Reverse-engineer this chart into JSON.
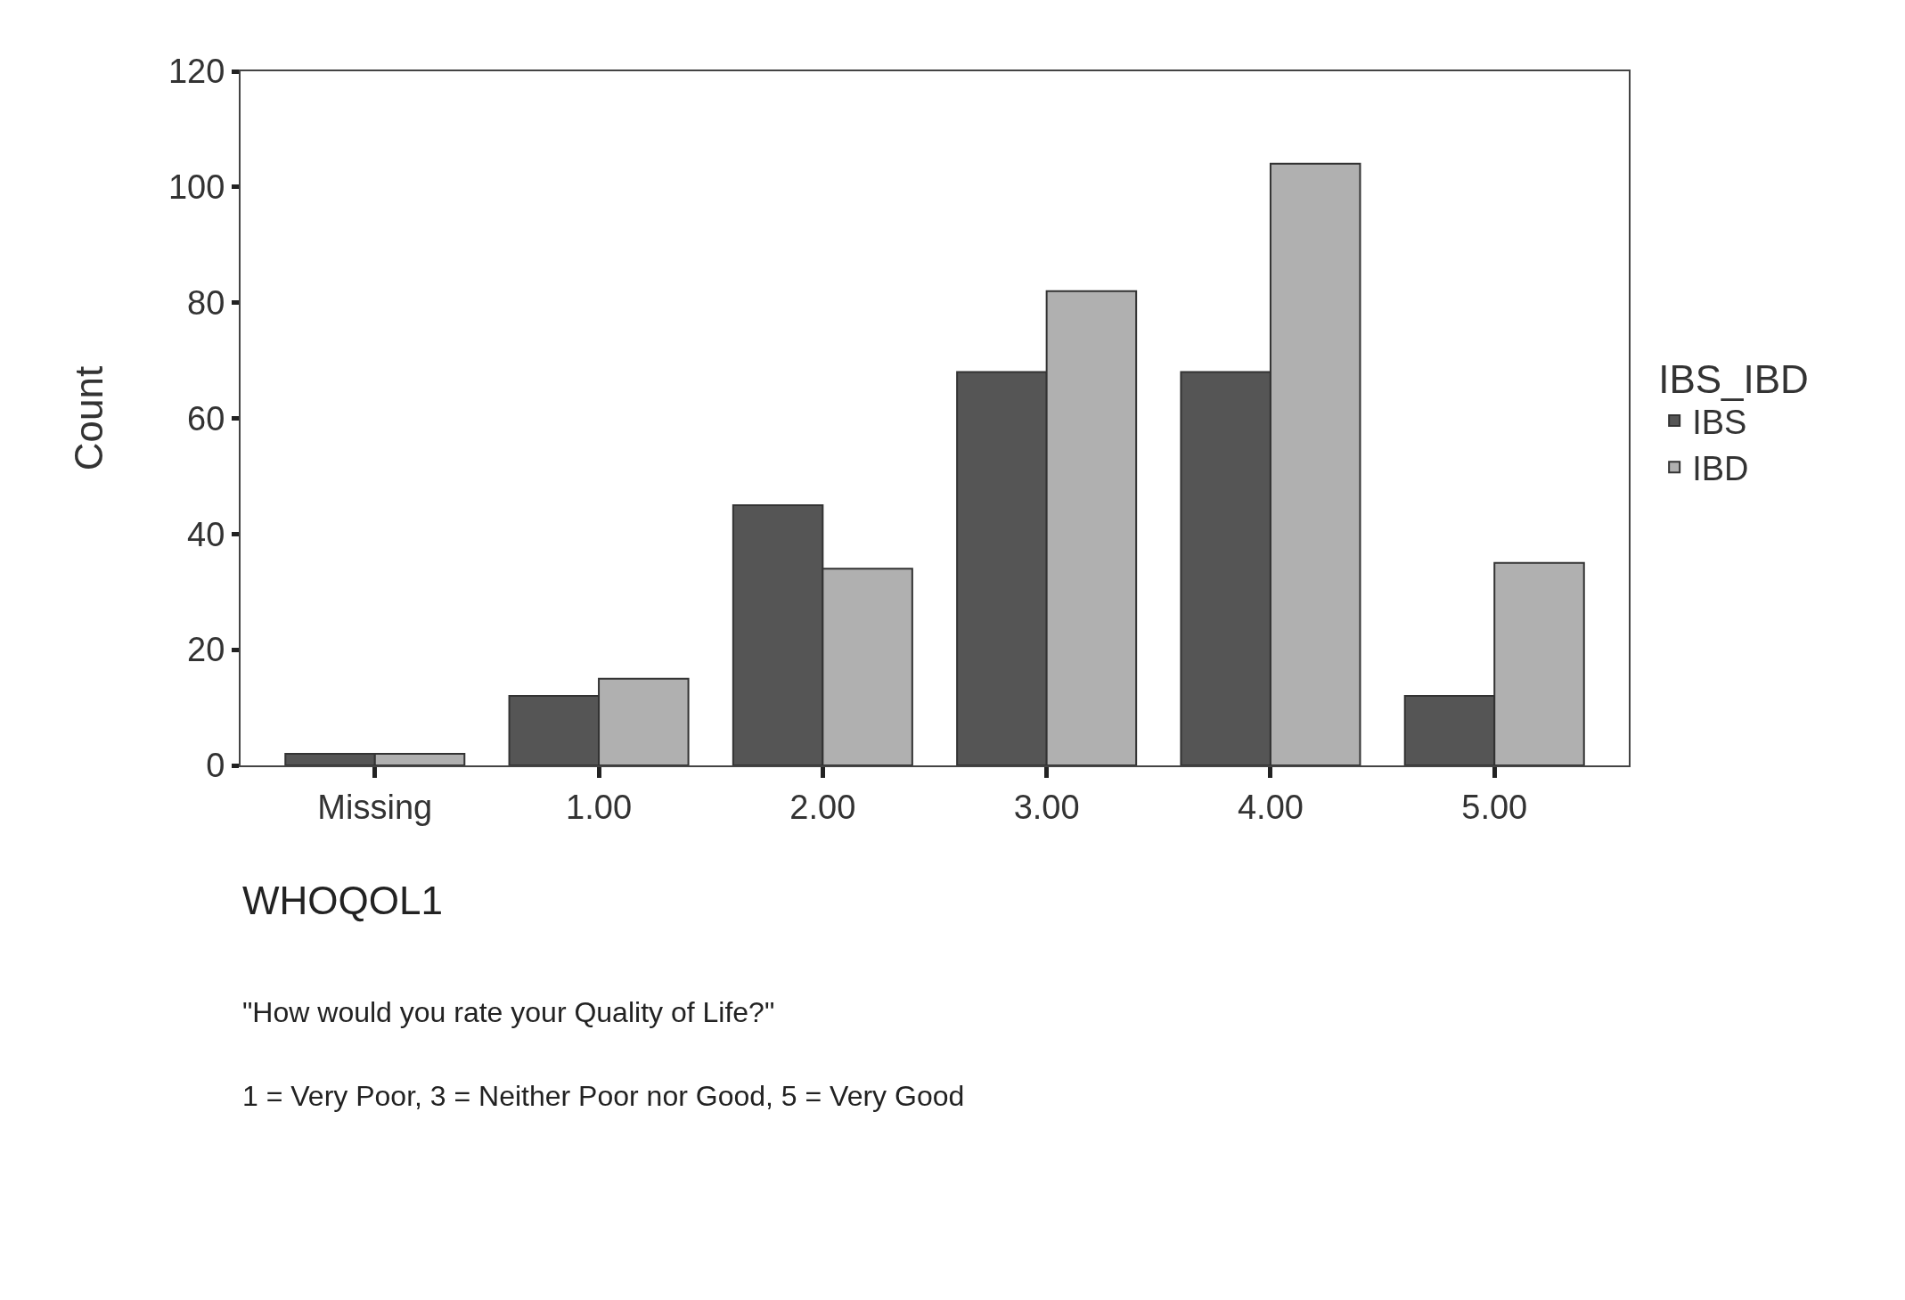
{
  "chart_data": {
    "type": "bar",
    "categories": [
      "Missing",
      "1.00",
      "2.00",
      "3.00",
      "4.00",
      "5.00"
    ],
    "series": [
      {
        "name": "IBS",
        "color": "#555555",
        "values": [
          2,
          12,
          45,
          68,
          68,
          12
        ]
      },
      {
        "name": "IBD",
        "color": "#b0b0b0",
        "values": [
          2,
          15,
          34,
          82,
          104,
          35
        ]
      }
    ],
    "xlabel": "WHOQOL1",
    "ylabel": "Count",
    "legend_title": "IBS_IBD",
    "legend": "right",
    "ylim": [
      0,
      120
    ],
    "yticks": [
      0,
      20,
      40,
      60,
      80,
      100,
      120
    ],
    "grid": false,
    "annotations": [
      "\"How would you rate your Quality of Life?\"",
      "1 = Very Poor, 3 = Neither Poor nor Good, 5 = Very Good"
    ]
  }
}
